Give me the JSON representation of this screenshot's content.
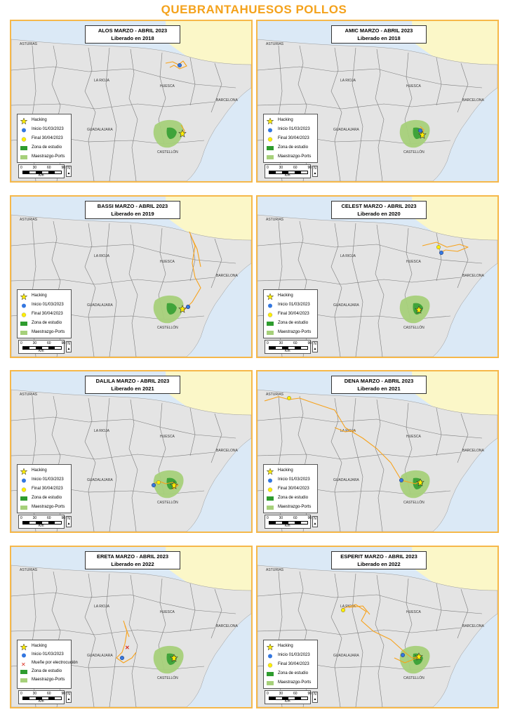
{
  "title": "QUEBRANTAHUESOS POLLOS",
  "place_labels": {
    "asturias": "ASTURIAS",
    "la_rioja": "LA RIOJA",
    "huesca": "HUESCA",
    "barcelona": "BARCELONA",
    "guadalajara": "GUADALAJARA",
    "castellon": "CASTELLÓN"
  },
  "legend": {
    "hacking": "Hacking",
    "inicio": "Inicio 01/03/2023",
    "final": "Final 30/04/2023",
    "zona": "Zona de estudio",
    "maestrazgo": "Maestrazgo-Ports",
    "mueñe": "Mueñe por electrocución"
  },
  "scale": {
    "ticks": [
      "0",
      "30",
      "60",
      "90"
    ],
    "unit": "Km"
  },
  "colors": {
    "track": "#f7a21b",
    "inicio": "#3477e0",
    "final": "#ffee00",
    "zona": "#2e9c2e",
    "maestrazgo": "#a6d07a",
    "sea": "#dbe9f6",
    "france": "#fbf7c8",
    "title": "#f4a21c"
  },
  "panels": [
    {
      "line1": "ALOS MARZO - ABRIL 2023",
      "line2": "Liberado en 2018"
    },
    {
      "line1": "AMIC MARZO - ABRIL 2023",
      "line2": "Liberado en 2018"
    },
    {
      "line1": "BASSI MARZO - ABRIL 2023",
      "line2": "Liberado en 2019"
    },
    {
      "line1": "CELEST MARZO - ABRIL 2023",
      "line2": "Liberado en 2020"
    },
    {
      "line1": "DALILA MARZO - ABRIL 2023",
      "line2": "Liberado en 2021"
    },
    {
      "line1": "DENA MARZO - ABRIL 2023",
      "line2": "Liberado en 2021"
    },
    {
      "line1": "ERETA MARZO - ABRIL 2023",
      "line2": "Liberado en 2022"
    },
    {
      "line1": "ESPERIT MARZO - ABRIL 2023",
      "line2": "Liberado en 2022"
    }
  ]
}
